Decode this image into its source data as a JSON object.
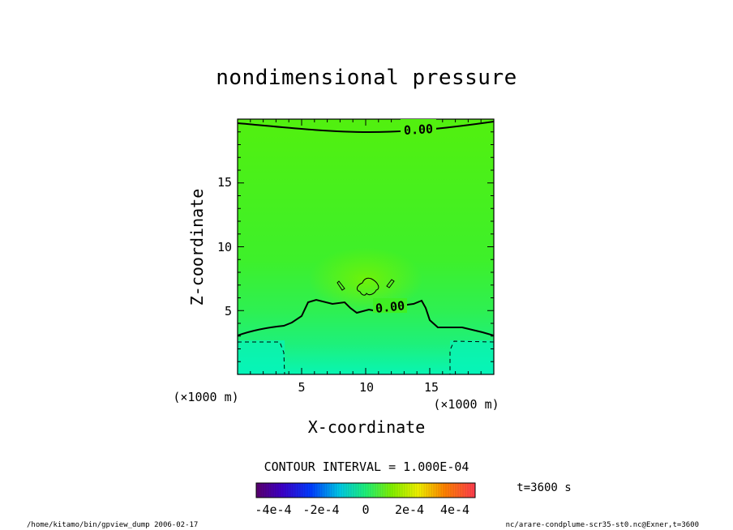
{
  "chart_data": {
    "type": "heatmap",
    "title": "nondimensional pressure",
    "xlabel": "X-coordinate",
    "ylabel": "Z-coordinate",
    "x_unit": "(×1000 m)",
    "y_unit": "(×1000 m)",
    "xlim": [
      0,
      20
    ],
    "ylim": [
      0,
      20
    ],
    "x_ticks": [
      5,
      10,
      15
    ],
    "y_ticks": [
      5,
      10,
      15
    ],
    "contour_labels": [
      "0.00",
      "0.00"
    ],
    "contour_interval": "CONTOUR INTERVAL = 1.000E-04",
    "colorbar": {
      "min": -0.0005,
      "max": 0.0005,
      "tick_labels": [
        "-4e-4",
        "-2e-4",
        "0",
        "2e-4",
        "4e-4"
      ],
      "tick_values": [
        -0.0004,
        -0.0002,
        0,
        0.0002,
        0.0004
      ]
    },
    "field_colors": {
      "upper": "#52f00f",
      "middle": "#3ef02a",
      "lower": "#1ef07a",
      "bottom": "#08f5b3"
    }
  },
  "time_label": "t=3600 s",
  "footer_left": "/home/kitamo/bin/gpview_dump  2006-02-17",
  "footer_right": "nc/arare-condplume-scr35-st0.nc@Exner,t=3600"
}
